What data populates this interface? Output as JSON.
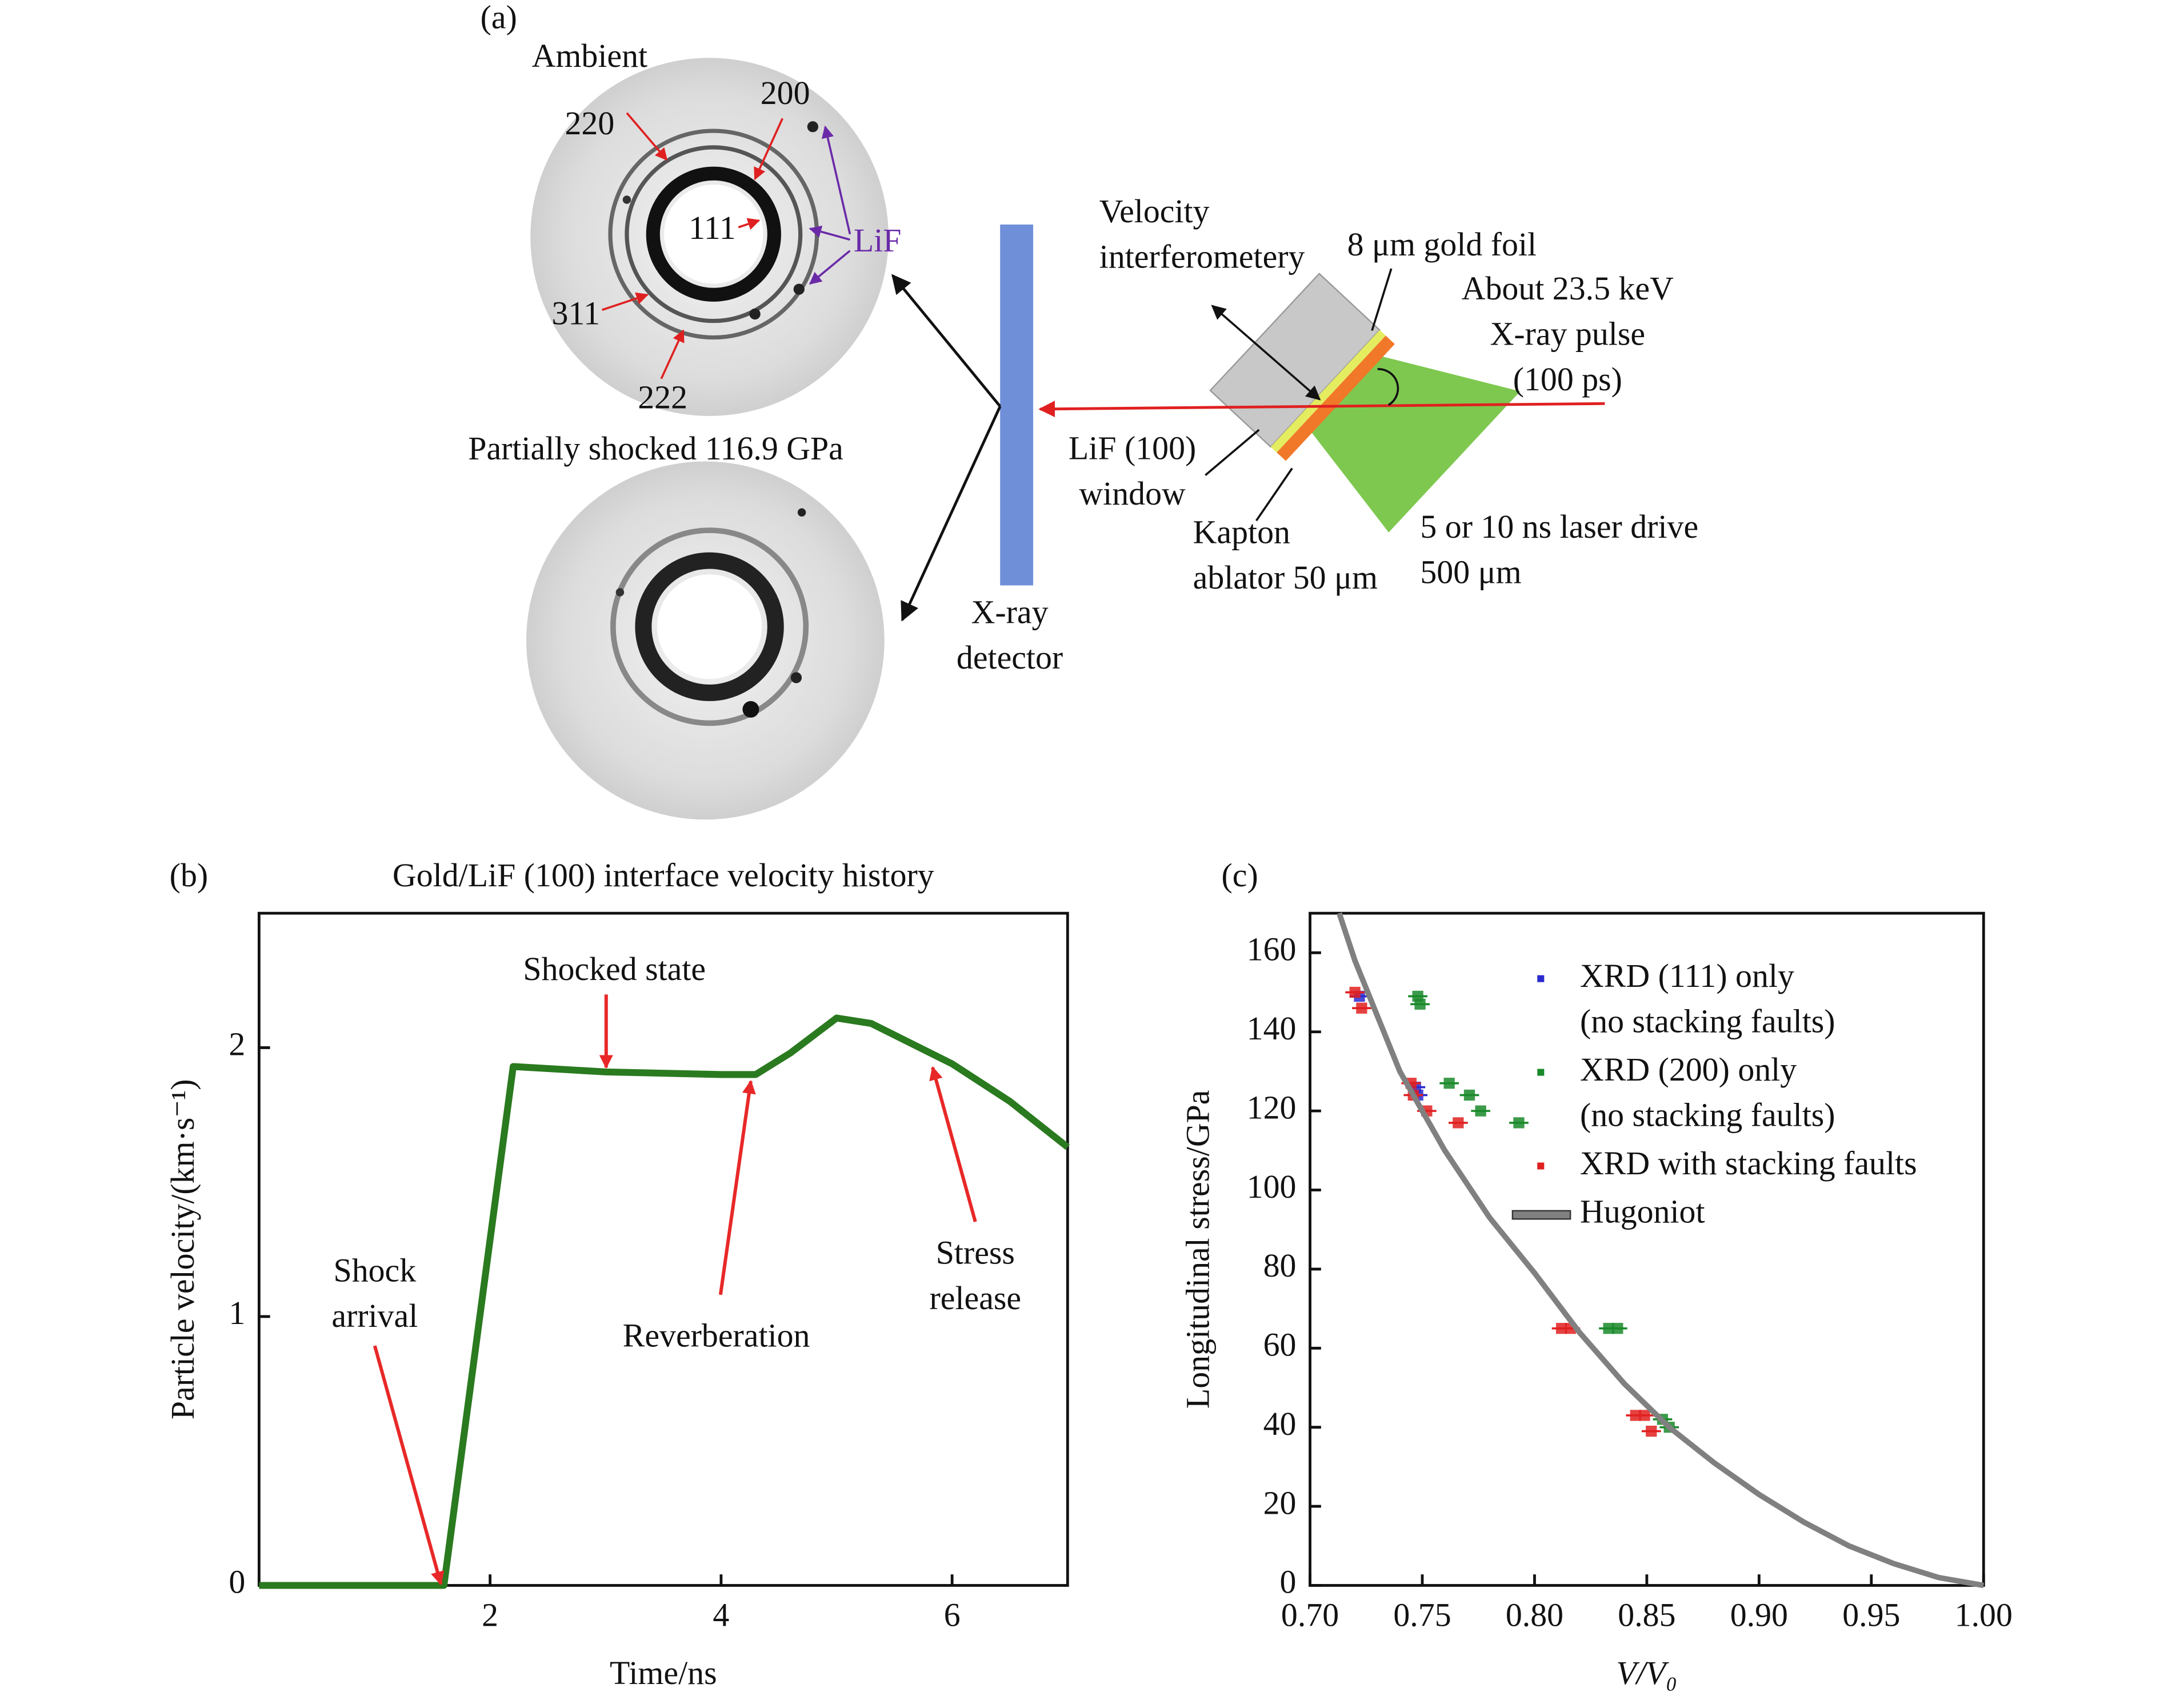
{
  "panel_a": {
    "label": "(a)",
    "ambient": "Ambient",
    "reflections": [
      "220",
      "200",
      "111",
      "311",
      "222"
    ],
    "lif": "LiF",
    "shocked": "Partially shocked 116.9 GPa",
    "velocity": "Velocity\ninterferometery",
    "gold": "8 μm gold foil",
    "xray": "About 23.5 keV\nX-ray pulse\n(100 ps)",
    "window": "LiF (100)\nwindow",
    "kapton": "Kapton\nablator 50 μm",
    "laser": "5 or 10 ns laser drive\n500 μm",
    "detector": "X-ray\ndetector"
  },
  "chart_data": [
    {
      "type": "line",
      "panel": "(b)",
      "title": "Gold/LiF (100) interface velocity history",
      "x_label": "Time/ns",
      "y_label": "Particle velocity/(km·s⁻¹)",
      "x": [
        0,
        1.6,
        2.2,
        3,
        4,
        4.3,
        4.6,
        5.0,
        5.3,
        6,
        6.5,
        7
      ],
      "series": [
        {
          "color": "#2a7a1f",
          "values": [
            0,
            0,
            1.93,
            1.91,
            1.9,
            1.9,
            1.98,
            2.11,
            2.09,
            1.94,
            1.8,
            1.63
          ]
        }
      ],
      "xlim": [
        0,
        7
      ],
      "xticks": [
        2,
        4,
        6
      ],
      "ylim": [
        0,
        2.5
      ],
      "yticks": [
        0,
        1,
        2
      ],
      "annotations": [
        "Shocked state",
        "Shock\narrival",
        "Reverberation",
        "Stress\nrelease"
      ]
    },
    {
      "type": "scatter",
      "panel": "(c)",
      "x_label": "V/V₀",
      "y_label": "Longitudinal stress/GPa",
      "xlim": [
        0.7,
        1.0
      ],
      "xticks": [
        {
          "value": 0.7,
          "label": "0.70"
        },
        0.75,
        {
          "value": 0.8,
          "label": "0.80"
        },
        0.85,
        {
          "value": 0.9,
          "label": "0.90"
        },
        0.95,
        {
          "value": 1.0,
          "label": "1.00"
        }
      ],
      "ylim": [
        0,
        170
      ],
      "yticks": [
        0,
        20,
        40,
        60,
        80,
        100,
        120,
        140,
        160
      ],
      "series": [
        {
          "name": "XRD (111) only\n(no stacking faults)",
          "color": "#2a2ad0",
          "x": [
            0.722,
            0.747,
            0.748
          ],
          "values": [
            149,
            126,
            124
          ]
        },
        {
          "name": "XRD (200) only\n(no stacking faults)",
          "color": "#1a8a2a",
          "x": [
            0.748,
            0.749,
            0.762,
            0.771,
            0.776,
            0.793,
            0.833,
            0.837,
            0.857,
            0.86
          ],
          "values": [
            149,
            147,
            127,
            124,
            120,
            117,
            65,
            65,
            42,
            40
          ]
        },
        {
          "name": "XRD with stacking faults",
          "color": "#e02020",
          "x": [
            0.72,
            0.723,
            0.745,
            0.746,
            0.752,
            0.766,
            0.812,
            0.816,
            0.845,
            0.852,
            0.849
          ],
          "values": [
            150,
            146,
            127,
            124,
            120,
            117,
            65,
            65,
            43,
            39,
            43
          ]
        },
        {
          "name": "Hugoniot",
          "type": "line",
          "color": "#808080",
          "x": [
            0.713,
            0.72,
            0.74,
            0.76,
            0.78,
            0.8,
            0.82,
            0.84,
            0.86,
            0.88,
            0.9,
            0.92,
            0.94,
            0.96,
            0.98,
            1.0
          ],
          "values": [
            170,
            158,
            130,
            110,
            93,
            79,
            64,
            51,
            40,
            31,
            23,
            16,
            10,
            5.5,
            2,
            0
          ]
        }
      ]
    }
  ]
}
